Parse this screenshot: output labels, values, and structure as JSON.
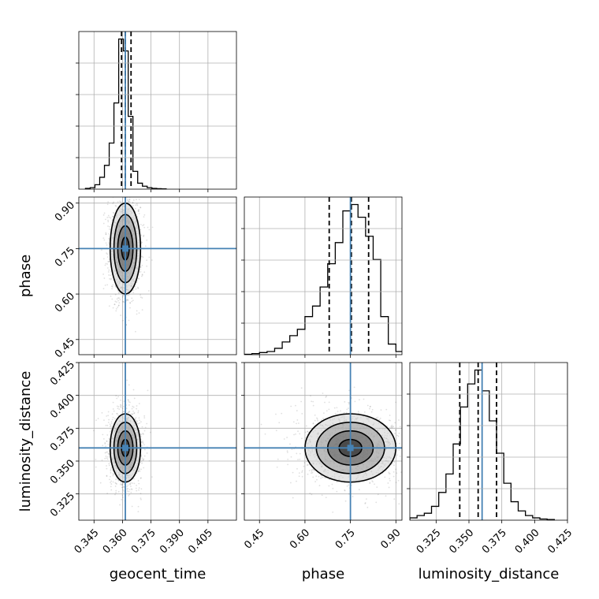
{
  "chart_data": {
    "type": "corner",
    "parameters": [
      {
        "key": "geocent_time",
        "label": "geocent_time",
        "range": [
          0.337,
          0.42
        ],
        "ticks": [
          0.345,
          0.36,
          0.375,
          0.39,
          0.405
        ],
        "tick_labels": [
          "0.345",
          "0.360",
          "0.375",
          "0.390",
          "0.405"
        ]
      },
      {
        "key": "phase",
        "label": "phase",
        "range": [
          0.4,
          0.92
        ],
        "ticks": [
          0.45,
          0.6,
          0.75,
          0.9
        ],
        "tick_labels": [
          "0.45",
          "0.60",
          "0.75",
          "0.90"
        ]
      },
      {
        "key": "luminosity_distance",
        "label": "luminosity_distance",
        "range": [
          0.305,
          0.425
        ],
        "ticks": [
          0.325,
          0.35,
          0.375,
          0.4,
          0.425
        ],
        "tick_labels": [
          "0.325",
          "0.350",
          "0.375",
          "0.400",
          "0.425"
        ]
      }
    ],
    "truths": {
      "geocent_time": 0.3615,
      "phase": 0.75,
      "luminosity_distance": 0.36
    },
    "quantiles": {
      "geocent_time": [
        0.3595,
        0.3615,
        0.3645
      ],
      "phase": [
        0.68,
        0.753,
        0.81
      ],
      "luminosity_distance": [
        0.343,
        0.357,
        0.371
      ]
    },
    "histograms": {
      "geocent_time": {
        "edges": [
          0.3405,
          0.343,
          0.3455,
          0.348,
          0.3505,
          0.353,
          0.3555,
          0.358,
          0.3605,
          0.363,
          0.3655,
          0.368,
          0.3705,
          0.373,
          0.3755,
          0.378,
          0.3805,
          0.383
        ],
        "counts": [
          0.5,
          1,
          3,
          8,
          16,
          31,
          58,
          101,
          93,
          49,
          12,
          4,
          2,
          1,
          0.5,
          0.3,
          0.2
        ]
      },
      "phase": {
        "edges": [
          0.4,
          0.425,
          0.45,
          0.475,
          0.5,
          0.525,
          0.55,
          0.575,
          0.6,
          0.625,
          0.65,
          0.675,
          0.7,
          0.725,
          0.75,
          0.775,
          0.8,
          0.825,
          0.85,
          0.875,
          0.9,
          0.925
        ],
        "counts": [
          0.2,
          0.5,
          1,
          1.5,
          3,
          6,
          9,
          12,
          18,
          23,
          32,
          43,
          53,
          68,
          71,
          65,
          56,
          45,
          18,
          5,
          1.5
        ]
      },
      "luminosity_distance": {
        "edges": [
          0.305,
          0.3105,
          0.316,
          0.3215,
          0.327,
          0.3325,
          0.338,
          0.3435,
          0.349,
          0.3545,
          0.36,
          0.3655,
          0.371,
          0.3765,
          0.382,
          0.3875,
          0.393,
          0.3985,
          0.404,
          0.4095,
          0.415
        ],
        "counts": [
          1,
          2,
          3,
          6,
          12,
          20,
          33,
          49,
          59,
          65,
          56,
          43,
          29,
          16,
          8,
          4,
          2,
          1,
          0.5,
          0.3
        ]
      }
    },
    "scatter_sigma": {
      "geocent_time": 0.004,
      "phase": 0.075,
      "luminosity_distance": 0.013
    },
    "contour_levels_sigma": [
      0.5,
      1.0,
      1.5,
      2.0
    ],
    "grid": true
  }
}
